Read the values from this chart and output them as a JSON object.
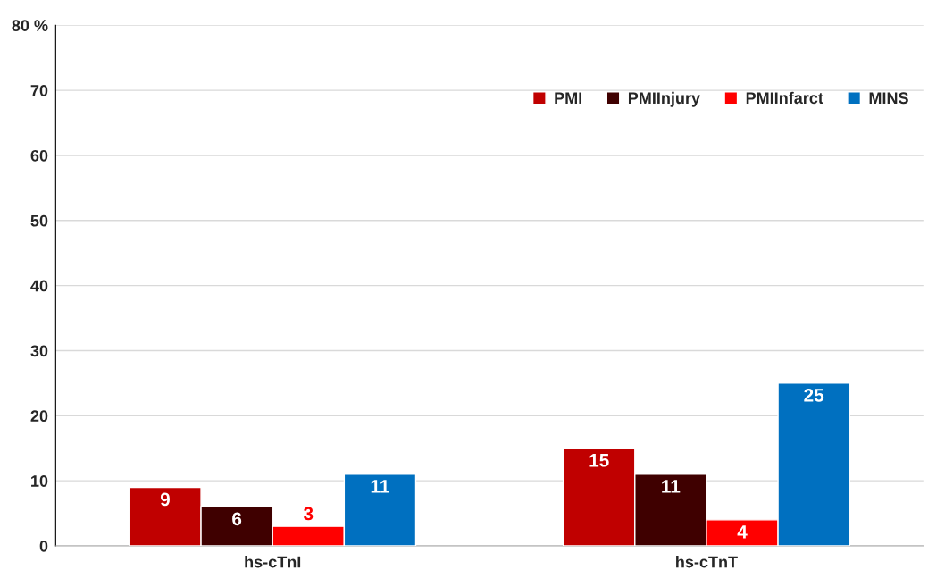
{
  "chart_data": {
    "type": "bar",
    "categories": [
      "hs-cTnI",
      "hs-cTnT"
    ],
    "series": [
      {
        "name": "PMI",
        "color": "#c00000",
        "values": [
          9,
          15
        ]
      },
      {
        "name": "PMIInjury",
        "color": "#3f0000",
        "values": [
          6,
          11
        ]
      },
      {
        "name": "PMIInfarct",
        "color": "#ff0000",
        "values": [
          3,
          4
        ]
      },
      {
        "name": "MINS",
        "color": "#0070c0",
        "values": [
          11,
          25
        ]
      }
    ],
    "ylim": [
      0,
      80
    ],
    "yticks": [
      0,
      10,
      20,
      30,
      40,
      50,
      60,
      70,
      {
        "value": 80,
        "label": "80 %"
      }
    ],
    "grid": "y",
    "legend": "top right",
    "data_labels": true
  }
}
